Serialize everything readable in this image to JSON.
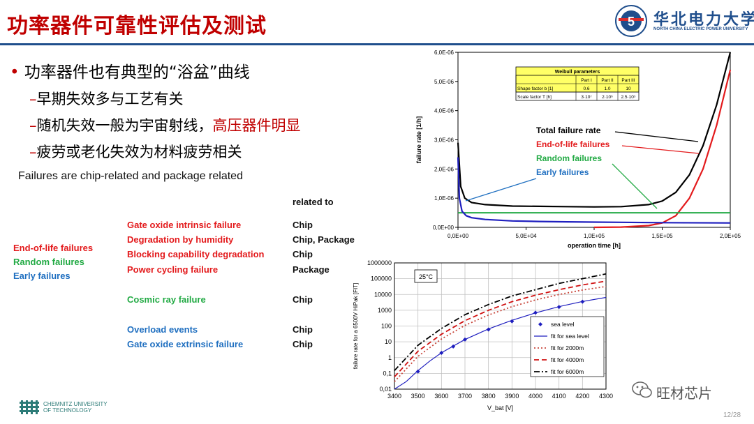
{
  "slide": {
    "title": "功率器件可靠性评估及测试",
    "page": "12/28",
    "watermark": "旺材芯片"
  },
  "logo": {
    "university_cn": "华北电力大学",
    "university_en": "NORTH CHINA ELECTRIC POWER UNIVERSITY",
    "emblem_text": "5",
    "footer_lines": [
      "CHEMNITZ UNIVERSITY",
      "OF TECHNOLOGY"
    ]
  },
  "bullets": {
    "main": "功率器件也有典型的“浴盆”曲线",
    "subs": [
      {
        "prefix": "–",
        "text": "早期失效多与工艺有关",
        "highlight": ""
      },
      {
        "prefix": "–",
        "text": "随机失效一般为宇宙射线，",
        "highlight": "高压器件明显"
      },
      {
        "prefix": "–",
        "text": "疲劳或老化失效为材料疲劳相关",
        "highlight": ""
      }
    ],
    "note": "Failures are chip-related and package related"
  },
  "table": {
    "header": "related to",
    "categories": [
      {
        "label": "End-of-life failures",
        "color": "#e31a1c"
      },
      {
        "label": "Random failures",
        "color": "#22aa44"
      },
      {
        "label": "Early failures",
        "color": "#1f6fc0"
      }
    ],
    "rows": [
      {
        "mode": "Gate oxide intrinsic failure",
        "relation": "Chip",
        "color": "#e31a1c"
      },
      {
        "mode": "Degradation by humidity",
        "relation": "Chip, Package",
        "color": "#e31a1c"
      },
      {
        "mode": "Blocking capability degradation",
        "relation": "Chip",
        "color": "#e31a1c"
      },
      {
        "mode": "Power cycling failure",
        "relation": "Package",
        "color": "#e31a1c"
      },
      {
        "mode": "Cosmic ray failure",
        "relation": "Chip",
        "color": "#22aa44"
      },
      {
        "mode": "Overload events",
        "relation": "Chip",
        "color": "#1f6fc0"
      },
      {
        "mode": "Gate oxide extrinsic failure",
        "relation": "Chip",
        "color": "#1f6fc0"
      }
    ]
  },
  "chart_data": [
    {
      "type": "line",
      "xlabel": "operation time [h]",
      "ylabel": "failure rate [1/h]",
      "xlim": [
        0,
        200000
      ],
      "ylim": [
        0,
        6e-06
      ],
      "x_ticks": [
        "0,0E+00",
        "5,0E+04",
        "1,0E+05",
        "1,5E+05",
        "2,0E+05"
      ],
      "y_ticks": [
        "0,0E+00",
        "1,0E-06",
        "2,0E-06",
        "3,0E-06",
        "4,0E-06",
        "5,0E-06",
        "6,0E-06"
      ],
      "grid": false,
      "series": [
        {
          "name": "Total failure rate",
          "color": "#000000",
          "x": [
            0,
            2000,
            5000,
            10000,
            20000,
            40000,
            60000,
            80000,
            100000,
            120000,
            140000,
            150000,
            160000,
            170000,
            180000,
            190000,
            200000
          ],
          "y": [
            2.9e-06,
            1.4e-06,
            1e-06,
            8.5e-07,
            7.8e-07,
            7.3e-07,
            7.2e-07,
            7.1e-07,
            7e-07,
            7.1e-07,
            7.8e-07,
            9e-07,
            1.2e-06,
            1.8e-06,
            2.8e-06,
            4.2e-06,
            6e-06
          ]
        },
        {
          "name": "End-of-life failures",
          "color": "#e31a1c",
          "x": [
            100000,
            120000,
            140000,
            150000,
            160000,
            170000,
            180000,
            190000,
            200000
          ],
          "y": [
            0.0,
            1e-08,
            6e-08,
            1.5e-07,
            4e-07,
            1e-06,
            2e-06,
            3.5e-06,
            5.4e-06
          ]
        },
        {
          "name": "Random failures",
          "color": "#22aa44",
          "x": [
            0,
            200000
          ],
          "y": [
            5e-07,
            5e-07
          ]
        },
        {
          "name": "Early failures",
          "color": "#1f1fbf",
          "x": [
            0,
            1000,
            3000,
            6000,
            10000,
            20000,
            40000,
            60000,
            80000,
            100000,
            150000,
            200000
          ],
          "y": [
            2.4e-06,
            1e-06,
            5.5e-07,
            4e-07,
            3.3e-07,
            2.7e-07,
            2.2e-07,
            2e-07,
            1.9e-07,
            1.8e-07,
            1.6e-07,
            1.5e-07
          ]
        }
      ],
      "weibull_table": {
        "title": "Weibull parameters",
        "columns": [
          "",
          "Part I",
          "Part II",
          "Part III"
        ],
        "rows": [
          [
            "Shape factor b [1]",
            "0.6",
            "1.0",
            "10"
          ],
          [
            "Scale factor T [h]",
            "3·10⁷",
            "2·10⁶",
            "2.5·10⁵"
          ]
        ]
      }
    },
    {
      "type": "line",
      "xlabel": "V_bat [V]",
      "ylabel": "failure rate for a 6500V HiPak [FIT]",
      "annotation": "25°C",
      "log_y": true,
      "grid": true,
      "legend": "bottom-right",
      "xlim": [
        3400,
        4300
      ],
      "ylim": [
        0.01,
        1000000
      ],
      "x_ticks": [
        "3400",
        "3500",
        "3600",
        "3700",
        "3800",
        "3900",
        "4000",
        "4100",
        "4200",
        "4300"
      ],
      "y_ticks": [
        "0,01",
        "0,1",
        "1",
        "10",
        "100",
        "1000",
        "10000",
        "100000",
        "1000000"
      ],
      "series": [
        {
          "name": "sea level",
          "color": "#1f1fbf",
          "style": "marker",
          "x": [
            3500,
            3600,
            3650,
            3700,
            3800,
            3900,
            4000,
            4100,
            4200
          ],
          "y": [
            0.13,
            2,
            5,
            14,
            60,
            200,
            700,
            1600,
            3500
          ]
        },
        {
          "name": "fit for sea level",
          "color": "#1f1fbf",
          "style": "solid",
          "x": [
            3400,
            3450,
            3500,
            3550,
            3600,
            3700,
            3800,
            3900,
            4000,
            4100,
            4200,
            4300
          ],
          "y": [
            0.004,
            0.03,
            0.15,
            0.6,
            2,
            14,
            65,
            230,
            680,
            1700,
            3600,
            6500
          ]
        },
        {
          "name": "fit for 2000m",
          "color": "#c8453a",
          "style": "dotted",
          "x": [
            3400,
            3500,
            3600,
            3700,
            3800,
            3900,
            4000,
            4100,
            4200,
            4300
          ],
          "y": [
            0.03,
            1.2,
            15,
            110,
            500,
            1700,
            4500,
            10000,
            19000,
            32000
          ]
        },
        {
          "name": "fit for 4000m",
          "color": "#d01010",
          "style": "dashed",
          "x": [
            3400,
            3500,
            3600,
            3700,
            3800,
            3900,
            4000,
            4100,
            4200,
            4300
          ],
          "y": [
            0.06,
            2.5,
            30,
            220,
            1000,
            3500,
            9000,
            20000,
            40000,
            70000
          ]
        },
        {
          "name": "fit for 6000m",
          "color": "#000000",
          "style": "dashdot",
          "x": [
            3400,
            3500,
            3600,
            3700,
            3800,
            3900,
            4000,
            4100,
            4200,
            4300
          ],
          "y": [
            0.15,
            6,
            70,
            520,
            2300,
            8000,
            20000,
            50000,
            100000,
            200000
          ]
        }
      ]
    }
  ]
}
